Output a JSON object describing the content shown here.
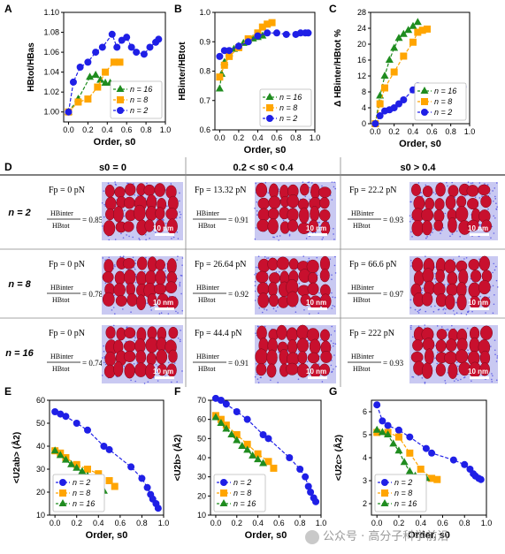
{
  "colors": {
    "n2": "#1f1fe6",
    "n8": "#ffa500",
    "n16": "#1f8c1f",
    "axis": "#000000",
    "grid_line": "#333333",
    "protein": "#c8102e",
    "water": "#3a3ae0"
  },
  "watermark": {
    "text": "公众号 · 高分子科学前沿",
    "icon": "wechat-icon"
  },
  "panel_d": {
    "label": "D",
    "col_headers": [
      "s0 = 0",
      "0.2 < s0 < 0.4",
      "s0 > 0.4"
    ],
    "row_headers": [
      "n = 2",
      "n = 8",
      "n = 16"
    ],
    "cells": [
      [
        {
          "fp": "Fp = 0 pN",
          "ratio": "= 0.85",
          "scale": "10 nm"
        },
        {
          "fp": "Fp = 13.32 pN",
          "ratio": "= 0.91",
          "scale": "10 nm"
        },
        {
          "fp": "Fp = 22.2 pN",
          "ratio": "= 0.93",
          "scale": "10 nm"
        }
      ],
      [
        {
          "fp": "Fp = 0 pN",
          "ratio": "= 0.78",
          "scale": "10 nm"
        },
        {
          "fp": "Fp = 26.64 pN",
          "ratio": "= 0.92",
          "scale": "10 nm"
        },
        {
          "fp": "Fp = 66.6 pN",
          "ratio": "= 0.97",
          "scale": "10 nm"
        }
      ],
      [
        {
          "fp": "Fp = 0 pN",
          "ratio": "= 0.74",
          "scale": "10 nm"
        },
        {
          "fp": "Fp = 44.4 pN",
          "ratio": "= 0.91",
          "scale": "10 nm"
        },
        {
          "fp": "Fp = 222 pN",
          "ratio": "= 0.93",
          "scale": "10 nm"
        }
      ]
    ],
    "hb_num": "HBinter",
    "hb_den": "HBtot"
  },
  "chart_data": [
    {
      "panel": "A",
      "type": "line",
      "xlabel": "Order, s0",
      "ylabel": "HBtot/HBas",
      "xlim": [
        -0.05,
        1.0
      ],
      "ylim": [
        0.99,
        1.1
      ],
      "xticks": [
        "0.0",
        "0.2",
        "0.4",
        "0.6",
        "0.8",
        "1.0"
      ],
      "yticks": [
        "1.00",
        "1.02",
        "1.04",
        "1.06",
        "1.08",
        "1.10"
      ],
      "legend": "bottom-right",
      "series": [
        {
          "name": "n = 16",
          "color": "#1f8c1f",
          "marker": "triangle",
          "x": [
            0.0,
            0.1,
            0.22,
            0.28,
            0.33,
            0.38,
            0.43
          ],
          "y": [
            1.0,
            1.013,
            1.035,
            1.037,
            1.032,
            1.029,
            1.029
          ]
        },
        {
          "name": "n = 8",
          "color": "#ffa500",
          "marker": "square",
          "x": [
            0.0,
            0.1,
            0.2,
            0.3,
            0.38,
            0.47,
            0.53
          ],
          "y": [
            1.0,
            1.01,
            1.013,
            1.025,
            1.04,
            1.05,
            1.05
          ]
        },
        {
          "name": "n = 2",
          "color": "#1f1fe6",
          "marker": "circle",
          "x": [
            0.0,
            0.05,
            0.12,
            0.2,
            0.28,
            0.35,
            0.45,
            0.5,
            0.55,
            0.6,
            0.65,
            0.7,
            0.78,
            0.84,
            0.9,
            0.93
          ],
          "y": [
            1.0,
            1.03,
            1.045,
            1.05,
            1.06,
            1.065,
            1.078,
            1.065,
            1.072,
            1.075,
            1.065,
            1.06,
            1.058,
            1.065,
            1.07,
            1.073
          ]
        }
      ]
    },
    {
      "panel": "B",
      "type": "line",
      "xlabel": "Order, s0",
      "ylabel": "HBinter/HBtot",
      "xlim": [
        -0.05,
        1.0
      ],
      "ylim": [
        0.6,
        1.0
      ],
      "xticks": [
        "0.0",
        "0.2",
        "0.4",
        "0.6",
        "0.8",
        "1.0"
      ],
      "yticks": [
        "0.6",
        "0.7",
        "0.8",
        "0.9",
        "1.0"
      ],
      "legend": "bottom-right",
      "series": [
        {
          "name": "n = 16",
          "color": "#1f8c1f",
          "marker": "triangle",
          "x": [
            0.0,
            0.02,
            0.05,
            0.1,
            0.15,
            0.2,
            0.25,
            0.3,
            0.35,
            0.4,
            0.45
          ],
          "y": [
            0.74,
            0.79,
            0.83,
            0.86,
            0.875,
            0.885,
            0.895,
            0.905,
            0.91,
            0.915,
            0.92
          ]
        },
        {
          "name": "n = 8",
          "color": "#ffa500",
          "marker": "square",
          "x": [
            0.0,
            0.05,
            0.1,
            0.2,
            0.3,
            0.4,
            0.45,
            0.5,
            0.55
          ],
          "y": [
            0.78,
            0.82,
            0.85,
            0.88,
            0.91,
            0.93,
            0.95,
            0.96,
            0.965
          ]
        },
        {
          "name": "n = 2",
          "color": "#1f1fe6",
          "marker": "circle",
          "x": [
            0.0,
            0.05,
            0.1,
            0.2,
            0.3,
            0.4,
            0.5,
            0.6,
            0.7,
            0.8,
            0.85,
            0.9,
            0.93
          ],
          "y": [
            0.85,
            0.87,
            0.87,
            0.885,
            0.9,
            0.92,
            0.93,
            0.93,
            0.925,
            0.925,
            0.93,
            0.93,
            0.93
          ]
        }
      ]
    },
    {
      "panel": "C",
      "type": "line",
      "xlabel": "Order, s0",
      "ylabel": "Δ HBinter/HBtot %",
      "xlim": [
        -0.05,
        1.0
      ],
      "ylim": [
        0,
        28
      ],
      "xticks": [
        "0.0",
        "0.2",
        "0.4",
        "0.6",
        "0.8",
        "1.0"
      ],
      "yticks": [
        "0",
        "4",
        "8",
        "12",
        "16",
        "20",
        "24",
        "28"
      ],
      "legend": "bottom-right",
      "series": [
        {
          "name": "n = 16",
          "color": "#1f8c1f",
          "marker": "triangle",
          "x": [
            0.0,
            0.05,
            0.1,
            0.15,
            0.2,
            0.25,
            0.3,
            0.35,
            0.4,
            0.45
          ],
          "y": [
            0.0,
            7.0,
            12.0,
            16.0,
            19.0,
            21.5,
            22.5,
            23.5,
            24.5,
            25.5
          ]
        },
        {
          "name": "n = 8",
          "color": "#ffa500",
          "marker": "square",
          "x": [
            0.0,
            0.05,
            0.1,
            0.2,
            0.3,
            0.4,
            0.45,
            0.5,
            0.55
          ],
          "y": [
            0.0,
            5.0,
            9.0,
            13.0,
            17.0,
            20.5,
            23.0,
            23.5,
            23.8
          ]
        },
        {
          "name": "n = 2",
          "color": "#1f1fe6",
          "marker": "circle",
          "x": [
            0.0,
            0.05,
            0.1,
            0.15,
            0.2,
            0.25,
            0.3,
            0.4,
            0.45,
            0.5,
            0.6,
            0.7,
            0.8,
            0.85,
            0.9,
            0.93
          ],
          "y": [
            0.0,
            2.0,
            3.2,
            3.5,
            4.0,
            5.0,
            6.0,
            8.5,
            9.5,
            9.0,
            8.8,
            8.8,
            8.8,
            9.0,
            9.2,
            9.3
          ]
        }
      ]
    },
    {
      "panel": "E",
      "type": "line",
      "xlabel": "Order, s0",
      "ylabel": "<U2ab> (Å2)",
      "xlim": [
        -0.05,
        1.0
      ],
      "ylim": [
        10,
        60
      ],
      "xticks": [
        "0.0",
        "0.2",
        "0.4",
        "0.6",
        "0.8",
        "1.0"
      ],
      "yticks": [
        "10",
        "20",
        "30",
        "40",
        "50",
        "60"
      ],
      "legend": "bottom-left",
      "series": [
        {
          "name": "n = 2",
          "color": "#1f1fe6",
          "marker": "circle",
          "x": [
            0.0,
            0.05,
            0.1,
            0.2,
            0.3,
            0.45,
            0.5,
            0.7,
            0.8,
            0.85,
            0.88,
            0.9,
            0.93,
            0.95
          ],
          "y": [
            55.0,
            54.0,
            53.0,
            50.0,
            47.0,
            40.0,
            38.5,
            31.0,
            26.0,
            22.0,
            19.0,
            17.0,
            15.0,
            13.0
          ]
        },
        {
          "name": "n = 8",
          "color": "#ffa500",
          "marker": "square",
          "x": [
            0.0,
            0.05,
            0.1,
            0.2,
            0.3,
            0.4,
            0.5,
            0.55
          ],
          "y": [
            38.0,
            37.0,
            35.0,
            32.0,
            30.0,
            28.0,
            25.0,
            22.5
          ]
        },
        {
          "name": "n = 16",
          "color": "#1f8c1f",
          "marker": "triangle",
          "x": [
            0.0,
            0.05,
            0.1,
            0.15,
            0.2,
            0.25,
            0.3,
            0.35,
            0.4,
            0.45
          ],
          "y": [
            38.0,
            36.0,
            34.0,
            32.0,
            30.5,
            29.0,
            27.0,
            25.0,
            23.0,
            20.5
          ]
        }
      ]
    },
    {
      "panel": "F",
      "type": "line",
      "xlabel": "Order, s0",
      "ylabel": "<U2b> (Å2)",
      "xlim": [
        -0.05,
        1.0
      ],
      "ylim": [
        10,
        70
      ],
      "xticks": [
        "0.0",
        "0.2",
        "0.4",
        "0.6",
        "0.8",
        "1.0"
      ],
      "yticks": [
        "10",
        "20",
        "30",
        "40",
        "50",
        "60",
        "70"
      ],
      "legend": "bottom-left",
      "series": [
        {
          "name": "n = 2",
          "color": "#1f1fe6",
          "marker": "circle",
          "x": [
            0.0,
            0.05,
            0.1,
            0.2,
            0.3,
            0.45,
            0.5,
            0.7,
            0.8,
            0.85,
            0.88,
            0.9,
            0.93,
            0.95
          ],
          "y": [
            71.0,
            70.0,
            68.0,
            64.0,
            60.0,
            52.0,
            50.0,
            40.0,
            34.0,
            30.0,
            25.0,
            22.0,
            19.0,
            17.0
          ]
        },
        {
          "name": "n = 8",
          "color": "#ffa500",
          "marker": "square",
          "x": [
            0.0,
            0.05,
            0.1,
            0.2,
            0.3,
            0.4,
            0.5,
            0.55
          ],
          "y": [
            62.0,
            60.0,
            57.0,
            52.0,
            47.0,
            42.0,
            38.0,
            34.5
          ]
        },
        {
          "name": "n = 16",
          "color": "#1f8c1f",
          "marker": "triangle",
          "x": [
            0.0,
            0.05,
            0.1,
            0.15,
            0.2,
            0.25,
            0.3,
            0.35,
            0.4,
            0.45
          ],
          "y": [
            61.0,
            58.0,
            55.0,
            52.0,
            49.0,
            46.0,
            44.0,
            41.0,
            39.0,
            37.0
          ]
        }
      ]
    },
    {
      "panel": "G",
      "type": "line",
      "xlabel": "Order, s0",
      "ylabel": "<U2c> (Å2)",
      "xlim": [
        -0.05,
        1.0
      ],
      "ylim": [
        1.5,
        6.5
      ],
      "xticks": [
        "0.0",
        "0.2",
        "0.4",
        "0.6",
        "0.8",
        "1.0"
      ],
      "yticks": [
        "2",
        "3",
        "4",
        "5",
        "6"
      ],
      "legend": "bottom-left",
      "series": [
        {
          "name": "n = 2",
          "color": "#1f1fe6",
          "marker": "circle",
          "x": [
            0.0,
            0.05,
            0.1,
            0.2,
            0.3,
            0.45,
            0.5,
            0.7,
            0.8,
            0.85,
            0.88,
            0.9,
            0.93,
            0.95
          ],
          "y": [
            6.3,
            5.6,
            5.4,
            5.2,
            4.9,
            4.4,
            4.2,
            3.9,
            3.7,
            3.5,
            3.3,
            3.2,
            3.1,
            3.05
          ]
        },
        {
          "name": "n = 8",
          "color": "#ffa500",
          "marker": "square",
          "x": [
            0.0,
            0.1,
            0.2,
            0.3,
            0.4,
            0.5,
            0.55
          ],
          "y": [
            5.1,
            5.1,
            4.9,
            4.2,
            3.5,
            3.1,
            3.05
          ]
        },
        {
          "name": "n = 16",
          "color": "#1f8c1f",
          "marker": "triangle",
          "x": [
            0.0,
            0.05,
            0.1,
            0.15,
            0.2,
            0.25,
            0.3,
            0.35,
            0.4,
            0.45
          ],
          "y": [
            5.2,
            5.1,
            5.0,
            4.6,
            4.3,
            3.8,
            3.4,
            3.2,
            3.1,
            3.1
          ]
        }
      ]
    }
  ]
}
